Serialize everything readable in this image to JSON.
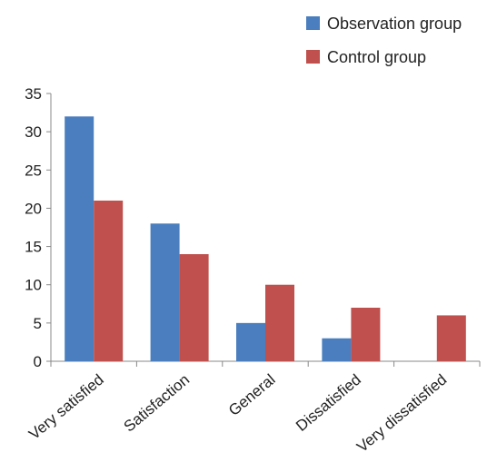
{
  "chart_data": {
    "type": "bar",
    "title": "",
    "xlabel": "",
    "ylabel": "",
    "categories": [
      "Very satisfied",
      "Satisfaction",
      "General",
      "Dissatisfied",
      "Very dissatisfied"
    ],
    "series": [
      {
        "name": "Observation group",
        "color": "#4a7ebf",
        "values": [
          32,
          18,
          5,
          3,
          0
        ]
      },
      {
        "name": "Control group",
        "color": "#c0504d",
        "values": [
          21,
          14,
          10,
          7,
          6
        ]
      }
    ],
    "ylim": [
      0,
      35
    ],
    "yticks": [
      0,
      5,
      10,
      15,
      20,
      25,
      30,
      35
    ],
    "grid": false,
    "legend_position": "top-right"
  }
}
